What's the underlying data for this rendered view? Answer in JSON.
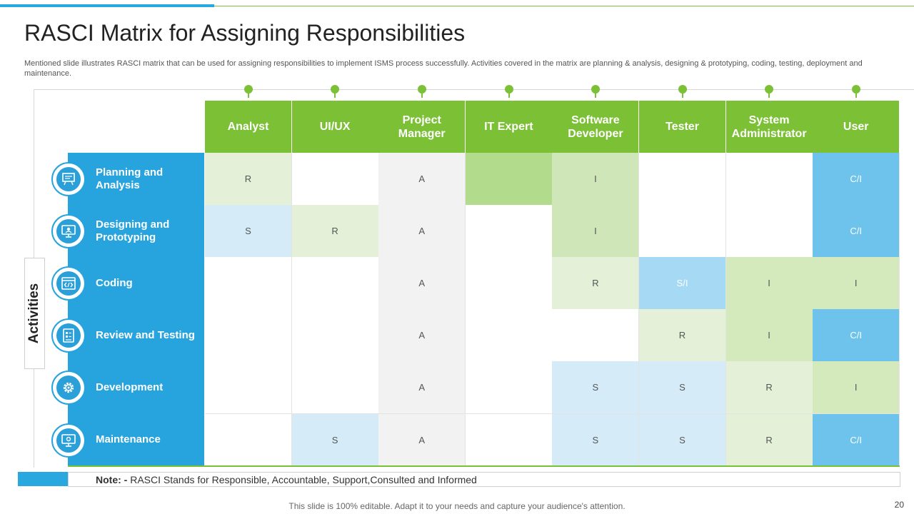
{
  "title": "RASCI Matrix for Assigning Responsibilities",
  "subtitle": "Mentioned slide illustrates RASCI matrix that can be used for assigning responsibilities to implement ISMS process successfully. Activities  covered in the matrix are planning & analysis, designing & prototyping, coding, testing, deployment and maintenance.",
  "side_label": "Activities",
  "columns": [
    "Analyst",
    "UI/UX",
    "Project Manager",
    "IT Expert",
    "Software Developer",
    "Tester",
    "System Administrator",
    "User"
  ],
  "rows": [
    {
      "label": "Planning and Analysis",
      "icon": "presentation-board-icon",
      "cells": [
        "R",
        "",
        "A",
        "",
        "I",
        "",
        "",
        "C/I"
      ]
    },
    {
      "label": "Designing and Prototyping",
      "icon": "design-monitor-icon",
      "cells": [
        "S",
        "R",
        "A",
        "",
        "I",
        "",
        "",
        "C/I"
      ]
    },
    {
      "label": "Coding",
      "icon": "code-window-icon",
      "cells": [
        "",
        "",
        "A",
        "",
        "R",
        "S/I",
        "I",
        "I"
      ]
    },
    {
      "label": "Review and Testing",
      "icon": "test-checklist-icon",
      "cells": [
        "",
        "",
        "A",
        "",
        "",
        "R",
        "I",
        "C/I"
      ]
    },
    {
      "label": "Development",
      "icon": "gear-icon",
      "cells": [
        "",
        "",
        "A",
        "",
        "S",
        "S",
        "R",
        "I"
      ]
    },
    {
      "label": "Maintenance",
      "icon": "monitor-settings-icon",
      "cells": [
        "",
        "S",
        "A",
        "",
        "S",
        "S",
        "R",
        "C/I"
      ]
    }
  ],
  "cell_colors": [
    [
      "#e4f1d8",
      "#ffffff",
      "#f2f2f2",
      "#b2db8c",
      "#cfe7b8",
      "#ffffff",
      "#ffffff",
      "#6ec3ec"
    ],
    [
      "#d5ecf8",
      "#e4f1d8",
      "#f2f2f2",
      "#ffffff",
      "#cfe7b8",
      "#ffffff",
      "#ffffff",
      "#6ec3ec"
    ],
    [
      "#ffffff",
      "#ffffff",
      "#f2f2f2",
      "#ffffff",
      "#e4f1d8",
      "#a6d9f3",
      "#d4eabd",
      "#d4eabd"
    ],
    [
      "#ffffff",
      "#ffffff",
      "#f2f2f2",
      "#ffffff",
      "#ffffff",
      "#e4f1d8",
      "#d4eabd",
      "#6ec3ec"
    ],
    [
      "#ffffff",
      "#ffffff",
      "#f2f2f2",
      "#ffffff",
      "#d5ecf8",
      "#d5ecf8",
      "#e4f1d8",
      "#d4eabd"
    ],
    [
      "#ffffff",
      "#d5ecf8",
      "#f2f2f2",
      "#ffffff",
      "#d5ecf8",
      "#d5ecf8",
      "#e4f1d8",
      "#6ec3ec"
    ]
  ],
  "note": {
    "prefix": "Note: -",
    "text": " RASCI Stands for Responsible, Accountable, Support,Consulted and Informed"
  },
  "footer": "This slide is 100% editable. Adapt it to your needs and capture your audience's attention.",
  "page_number": "20",
  "colors": {
    "green": "#7cc036",
    "blue": "#27a3de"
  }
}
